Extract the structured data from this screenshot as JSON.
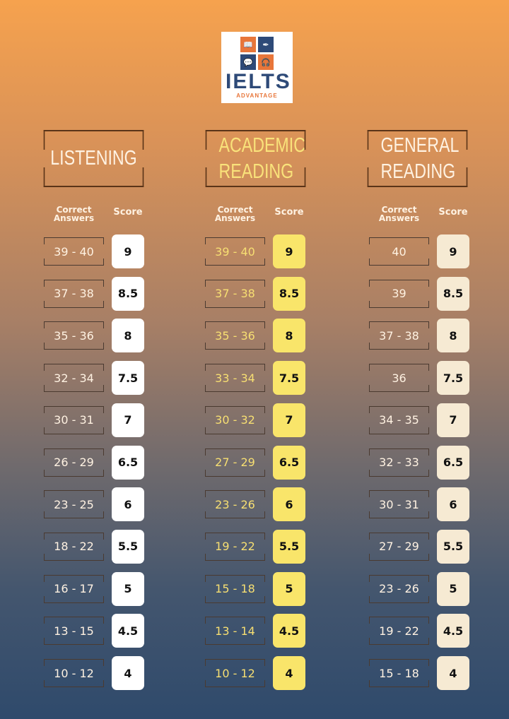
{
  "logo": {
    "title": "IELTS",
    "subtitle": "ADVANTAGE"
  },
  "columns": [
    {
      "title": "LISTENING",
      "title_color": "#fff2e2",
      "range_color": "#fff2e2",
      "score_bg": "#ffffff",
      "label_answers": "Correct Answers",
      "label_score": "Score",
      "rows": [
        [
          "39 - 40",
          "9"
        ],
        [
          "37 - 38",
          "8.5"
        ],
        [
          "35 - 36",
          "8"
        ],
        [
          "32 - 34",
          "7.5"
        ],
        [
          "30 - 31",
          "7"
        ],
        [
          "26 - 29",
          "6.5"
        ],
        [
          "23 - 25",
          "6"
        ],
        [
          "18 - 22",
          "5.5"
        ],
        [
          "16 - 17",
          "5"
        ],
        [
          "13 - 15",
          "4.5"
        ],
        [
          "10 - 12",
          "4"
        ]
      ]
    },
    {
      "title": "ACADEMIC READING",
      "title_color": "#f9e27a",
      "range_color": "#f7df72",
      "score_bg": "#f9e56a",
      "label_answers": "Correct Answers",
      "label_score": "Score",
      "rows": [
        [
          "39 - 40",
          "9"
        ],
        [
          "37 - 38",
          "8.5"
        ],
        [
          "35 - 36",
          "8"
        ],
        [
          "33 - 34",
          "7.5"
        ],
        [
          "30 - 32",
          "7"
        ],
        [
          "27 - 29",
          "6.5"
        ],
        [
          "23 - 26",
          "6"
        ],
        [
          "19 - 22",
          "5.5"
        ],
        [
          "15 - 18",
          "5"
        ],
        [
          "13 - 14",
          "4.5"
        ],
        [
          "10 - 12",
          "4"
        ]
      ]
    },
    {
      "title": "GENERAL READING",
      "title_color": "#fff2e2",
      "range_color": "#fff2e2",
      "score_bg": "#f6ead3",
      "label_answers": "Correct Answers",
      "label_score": "Score",
      "rows": [
        [
          "40",
          "9"
        ],
        [
          "39",
          "8.5"
        ],
        [
          "37 - 38",
          "8"
        ],
        [
          "36",
          "7.5"
        ],
        [
          "34 - 35",
          "7"
        ],
        [
          "32 - 33",
          "6.5"
        ],
        [
          "30 - 31",
          "6"
        ],
        [
          "27 - 29",
          "5.5"
        ],
        [
          "23 - 26",
          "5"
        ],
        [
          "19 - 22",
          "4.5"
        ],
        [
          "15 - 18",
          "4"
        ]
      ]
    }
  ]
}
